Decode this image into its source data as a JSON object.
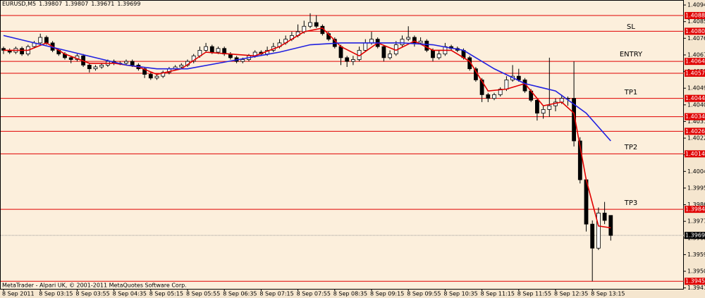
{
  "chart_data": {
    "type": "candlestick",
    "symbol": "EURUSD,M5",
    "footer": "MetaTrader - Alpari UK, © 2001-2011 MetaQuotes Software Corp.",
    "ylim": [
      1.3941,
      1.40972
    ],
    "yticks": [
      1.40945,
      1.40855,
      1.40765,
      1.40675,
      1.40585,
      1.40495,
      1.40405,
      1.40315,
      1.40225,
      1.40135,
      1.40045,
      1.39955,
      1.39865,
      1.39775,
      1.39685,
      1.39595,
      1.39505,
      1.39415
    ],
    "xticks": [
      {
        "value": 0,
        "label": "8 Sep 2011"
      },
      {
        "value": 6,
        "label": "8 Sep 03:15"
      },
      {
        "value": 12,
        "label": "8 Sep 03:55"
      },
      {
        "value": 18,
        "label": "8 Sep 04:35"
      },
      {
        "value": 24,
        "label": "8 Sep 05:15"
      },
      {
        "value": 30,
        "label": "8 Sep 05:55"
      },
      {
        "value": 36,
        "label": "8 Sep 06:35"
      },
      {
        "value": 42,
        "label": "8 Sep 07:15"
      },
      {
        "value": 48,
        "label": "8 Sep 07:55"
      },
      {
        "value": 54,
        "label": "8 Sep 08:35"
      },
      {
        "value": 60,
        "label": "8 Sep 09:15"
      },
      {
        "value": 66,
        "label": "8 Sep 09:55"
      },
      {
        "value": 72,
        "label": "8 Sep 10:35"
      },
      {
        "value": 78,
        "label": "8 Sep 11:15"
      },
      {
        "value": 84,
        "label": "8 Sep 11:55"
      },
      {
        "value": 90,
        "label": "8 Sep 12:35"
      },
      {
        "value": 96,
        "label": "8 Sep 13:15"
      }
    ],
    "levels": [
      {
        "value": 1.40888,
        "label": "1.40888"
      },
      {
        "value": 1.40803,
        "label": "1.40803"
      },
      {
        "value": 1.4064,
        "label": "1.40640"
      },
      {
        "value": 1.40576,
        "label": "1.40576"
      },
      {
        "value": 1.4044,
        "label": "1.40440"
      },
      {
        "value": 1.40341,
        "label": "1.40341"
      },
      {
        "value": 1.40262,
        "label": "1.40262"
      },
      {
        "value": 1.4014,
        "label": "1.40140"
      },
      {
        "value": 1.3984,
        "label": "1.39840"
      },
      {
        "value": 1.39451,
        "label": "1.39451"
      }
    ],
    "level_color": "#e00000",
    "current_price": 1.39699,
    "annotations": [
      "SL",
      "ENTRY",
      "TP1",
      "TP2",
      "TP3"
    ],
    "candles": [
      [
        1.4071,
        1.4072,
        1.4068,
        1.407
      ],
      [
        1.407,
        1.4071,
        1.4068,
        1.4069
      ],
      [
        1.4069,
        1.4072,
        1.4068,
        1.4071
      ],
      [
        1.4071,
        1.4072,
        1.4067,
        1.4068
      ],
      [
        1.4068,
        1.4073,
        1.4067,
        1.4072
      ],
      [
        1.4072,
        1.4075,
        1.4071,
        1.4074
      ],
      [
        1.4074,
        1.4079,
        1.4073,
        1.4077
      ],
      [
        1.4077,
        1.4078,
        1.4073,
        1.4074
      ],
      [
        1.4074,
        1.4075,
        1.4069,
        1.407
      ],
      [
        1.407,
        1.4071,
        1.4067,
        1.4068
      ],
      [
        1.4068,
        1.4069,
        1.4065,
        1.4066
      ],
      [
        1.4066,
        1.4067,
        1.4063,
        1.4065
      ],
      [
        1.4065,
        1.4068,
        1.4064,
        1.4067
      ],
      [
        1.4067,
        1.4068,
        1.4061,
        1.4062
      ],
      [
        1.4062,
        1.4063,
        1.4058,
        1.406
      ],
      [
        1.406,
        1.4062,
        1.4059,
        1.4061
      ],
      [
        1.4061,
        1.4063,
        1.406,
        1.4062
      ],
      [
        1.4062,
        1.4065,
        1.4061,
        1.4064
      ],
      [
        1.4064,
        1.4065,
        1.4062,
        1.4063
      ],
      [
        1.4063,
        1.4064,
        1.4062,
        1.4063
      ],
      [
        1.4063,
        1.4065,
        1.4062,
        1.4064
      ],
      [
        1.4064,
        1.4065,
        1.4061,
        1.4062
      ],
      [
        1.4062,
        1.4063,
        1.4059,
        1.406
      ],
      [
        1.406,
        1.4061,
        1.4055,
        1.4057
      ],
      [
        1.4057,
        1.4058,
        1.4054,
        1.4055
      ],
      [
        1.4055,
        1.4057,
        1.4054,
        1.4056
      ],
      [
        1.4056,
        1.4059,
        1.4055,
        1.4058
      ],
      [
        1.4058,
        1.4061,
        1.4057,
        1.406
      ],
      [
        1.406,
        1.4062,
        1.4059,
        1.4061
      ],
      [
        1.4061,
        1.4063,
        1.406,
        1.4062
      ],
      [
        1.4062,
        1.4065,
        1.4061,
        1.4064
      ],
      [
        1.4064,
        1.4068,
        1.4063,
        1.4067
      ],
      [
        1.4067,
        1.4072,
        1.4066,
        1.407
      ],
      [
        1.407,
        1.4074,
        1.4069,
        1.4072
      ],
      [
        1.4072,
        1.4073,
        1.4068,
        1.4069
      ],
      [
        1.4069,
        1.4072,
        1.4068,
        1.4071
      ],
      [
        1.4071,
        1.4072,
        1.4067,
        1.4068
      ],
      [
        1.4068,
        1.4069,
        1.4065,
        1.4066
      ],
      [
        1.4066,
        1.4067,
        1.4063,
        1.4064
      ],
      [
        1.4064,
        1.4066,
        1.4063,
        1.4065
      ],
      [
        1.4065,
        1.4068,
        1.4064,
        1.4067
      ],
      [
        1.4067,
        1.407,
        1.4066,
        1.4069
      ],
      [
        1.4069,
        1.407,
        1.4067,
        1.4068
      ],
      [
        1.4068,
        1.4072,
        1.4067,
        1.407
      ],
      [
        1.407,
        1.4074,
        1.4069,
        1.4072
      ],
      [
        1.4072,
        1.4076,
        1.4071,
        1.4074
      ],
      [
        1.4074,
        1.4078,
        1.4073,
        1.4076
      ],
      [
        1.4076,
        1.408,
        1.4075,
        1.4078
      ],
      [
        1.4078,
        1.4084,
        1.4077,
        1.408
      ],
      [
        1.408,
        1.4086,
        1.4079,
        1.4083
      ],
      [
        1.4083,
        1.409,
        1.4082,
        1.4085
      ],
      [
        1.4085,
        1.4089,
        1.4082,
        1.4083
      ],
      [
        1.4083,
        1.4084,
        1.4078,
        1.4079
      ],
      [
        1.4079,
        1.408,
        1.4075,
        1.4076
      ],
      [
        1.4076,
        1.4077,
        1.4071,
        1.4072
      ],
      [
        1.4072,
        1.4073,
        1.4062,
        1.4066
      ],
      [
        1.4066,
        1.4067,
        1.4061,
        1.4064
      ],
      [
        1.4064,
        1.4067,
        1.4062,
        1.4065
      ],
      [
        1.4065,
        1.4072,
        1.4064,
        1.407
      ],
      [
        1.407,
        1.4076,
        1.4069,
        1.4074
      ],
      [
        1.4074,
        1.408,
        1.4073,
        1.4076
      ],
      [
        1.4076,
        1.4077,
        1.4071,
        1.4072
      ],
      [
        1.4072,
        1.4073,
        1.4064,
        1.4066
      ],
      [
        1.4066,
        1.407,
        1.4065,
        1.4068
      ],
      [
        1.4068,
        1.4075,
        1.4067,
        1.4073
      ],
      [
        1.4073,
        1.4078,
        1.4072,
        1.4076
      ],
      [
        1.4076,
        1.4083,
        1.4075,
        1.4077
      ],
      [
        1.4077,
        1.4078,
        1.4072,
        1.4074
      ],
      [
        1.4074,
        1.4077,
        1.4073,
        1.4075
      ],
      [
        1.4075,
        1.4076,
        1.4069,
        1.407
      ],
      [
        1.407,
        1.4071,
        1.4064,
        1.4066
      ],
      [
        1.4066,
        1.407,
        1.4065,
        1.4068
      ],
      [
        1.4068,
        1.4074,
        1.4067,
        1.4072
      ],
      [
        1.4072,
        1.4073,
        1.407,
        1.4071
      ],
      [
        1.4071,
        1.4072,
        1.4069,
        1.407
      ],
      [
        1.407,
        1.4071,
        1.4065,
        1.4066
      ],
      [
        1.4066,
        1.4067,
        1.4059,
        1.406
      ],
      [
        1.406,
        1.4061,
        1.4053,
        1.4054
      ],
      [
        1.4054,
        1.4055,
        1.4042,
        1.4046
      ],
      [
        1.4046,
        1.4047,
        1.4042,
        1.4044
      ],
      [
        1.4044,
        1.4047,
        1.4043,
        1.4046
      ],
      [
        1.4046,
        1.405,
        1.4045,
        1.4049
      ],
      [
        1.4049,
        1.4056,
        1.4048,
        1.4054
      ],
      [
        1.4054,
        1.4062,
        1.4053,
        1.4056
      ],
      [
        1.4056,
        1.406,
        1.4053,
        1.4054
      ],
      [
        1.4054,
        1.4055,
        1.4047,
        1.4048
      ],
      [
        1.4048,
        1.4049,
        1.4042,
        1.4043
      ],
      [
        1.4043,
        1.4044,
        1.4032,
        1.4036
      ],
      [
        1.4036,
        1.404,
        1.4033,
        1.4038
      ],
      [
        1.4038,
        1.4066,
        1.4034,
        1.404
      ],
      [
        1.404,
        1.4044,
        1.4037,
        1.4042
      ],
      [
        1.4042,
        1.4046,
        1.4041,
        1.4044
      ],
      [
        1.4044,
        1.4045,
        1.404,
        1.4044
      ],
      [
        1.4044,
        1.4064,
        1.4018,
        1.4021
      ],
      [
        1.4021,
        1.4023,
        1.3998,
        1.4
      ],
      [
        1.4,
        1.4001,
        1.3972,
        1.3976
      ],
      [
        1.3976,
        1.3978,
        1.39451,
        1.3963
      ],
      [
        1.3963,
        1.3985,
        1.3962,
        1.3982
      ],
      [
        1.3982,
        1.3988,
        1.3976,
        1.3978
      ],
      [
        1.39807,
        1.39807,
        1.39671,
        1.39699
      ]
    ],
    "series": [
      {
        "color": "#e00000",
        "x": [
          0,
          4,
          7,
          10,
          14,
          18,
          22,
          25,
          29,
          33,
          37,
          41,
          45,
          49,
          52,
          55,
          58,
          61,
          64,
          67,
          70,
          73,
          76,
          79,
          82,
          85,
          88,
          91,
          93,
          95,
          97,
          99
        ],
        "values": [
          1.407,
          1.407,
          1.4074,
          1.4068,
          1.4063,
          1.4063,
          1.4061,
          1.4057,
          1.406,
          1.4069,
          1.4068,
          1.4067,
          1.4072,
          1.408,
          1.4082,
          1.4072,
          1.4067,
          1.4074,
          1.407,
          1.4075,
          1.407,
          1.407,
          1.4064,
          1.4048,
          1.4049,
          1.4052,
          1.404,
          1.4042,
          1.4036,
          1.4,
          1.3975,
          1.3974
        ]
      },
      {
        "color": "#2020e0",
        "x": [
          0,
          5,
          10,
          15,
          20,
          25,
          30,
          35,
          40,
          45,
          50,
          55,
          60,
          65,
          70,
          75,
          80,
          85,
          90,
          95,
          99
        ],
        "values": [
          1.4078,
          1.4074,
          1.407,
          1.4066,
          1.4062,
          1.406,
          1.406,
          1.4063,
          1.4066,
          1.4069,
          1.4073,
          1.4074,
          1.4074,
          1.4074,
          1.4073,
          1.407,
          1.406,
          1.4052,
          1.4048,
          1.4036,
          1.4021
        ]
      }
    ]
  }
}
